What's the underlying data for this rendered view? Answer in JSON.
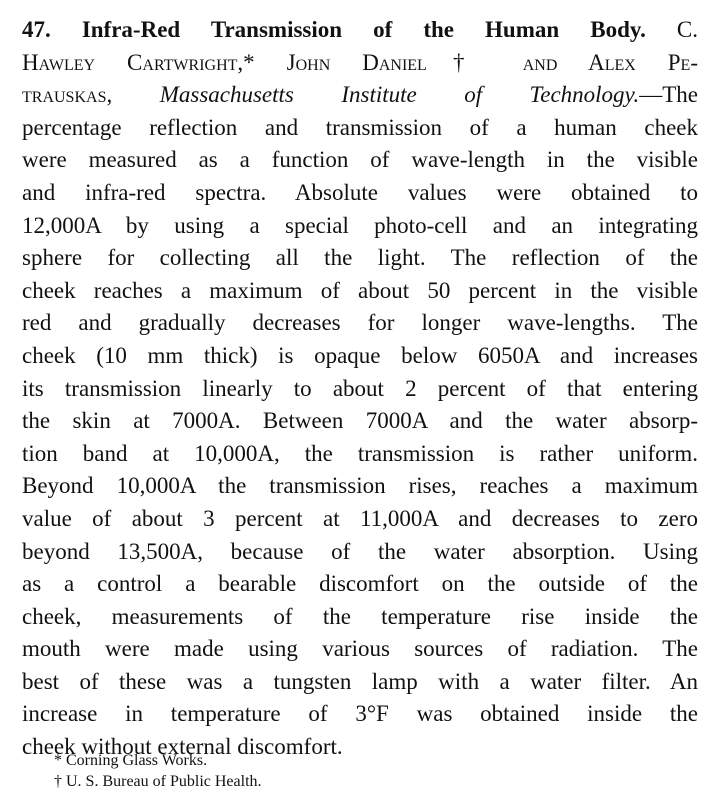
{
  "abstract": {
    "number": "47.",
    "title": "Infra-Red Transmission of the Human Body.",
    "authors_part1": "C. Hawley Cartwright,* John Daniel† and Alex Pe-",
    "authors_part2": "trauskas,",
    "affiliation": "Massachusetts Institute of Technology.",
    "lines": [
      "—The",
      "percentage reflection and transmission of a human cheek",
      "were measured as a function of wave-length in the visible",
      "and infra-red spectra. Absolute values were obtained to",
      "12,000A by using a special photo-cell and an integrating",
      "sphere for collecting all the light. The reflection of the",
      "cheek reaches a maximum of about 50 percent in the visible",
      "red and gradually decreases for longer wave-lengths. The",
      "cheek (10 mm thick) is opaque below 6050A and increases",
      "its transmission linearly to about 2 percent of that entering",
      "the skin at 7000A. Between 7000A and the water absorp-",
      "tion band at 10,000A, the transmission is rather uniform.",
      "Beyond 10,000A the transmission rises, reaches a maximum",
      "value of about 3 percent at 11,000A and decreases to zero",
      "beyond 13,500A, because of the water absorption. Using",
      "as a control a bearable discomfort on the outside of the",
      "cheek, measurements of the temperature rise inside the",
      "mouth were made using various sources of radiation. The",
      "best of these was a tungsten lamp with a water filter. An",
      "increase in temperature of 3°F was obtained inside the",
      "cheek without external discomfort."
    ]
  },
  "footnotes": [
    "* Corning Glass Works.",
    "† U. S. Bureau of Public Health."
  ]
}
